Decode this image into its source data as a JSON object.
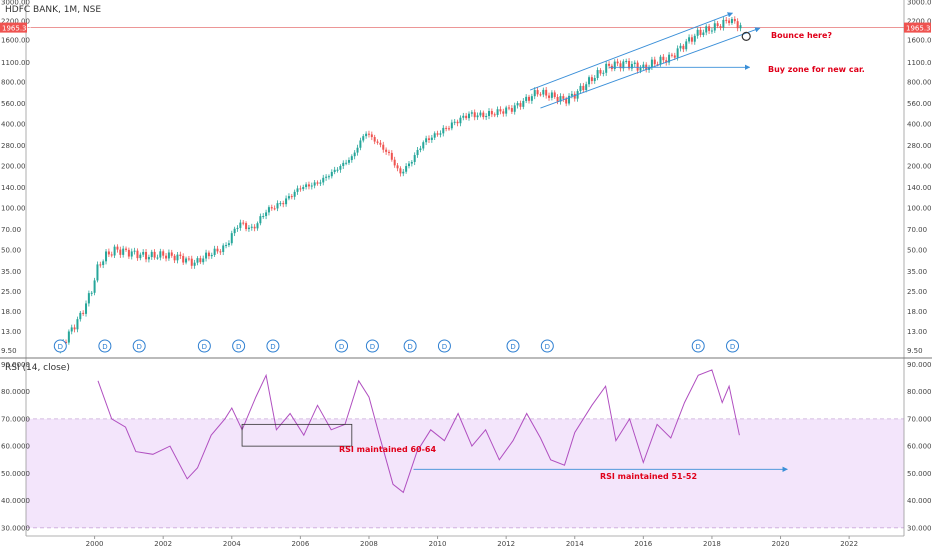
{
  "header": {
    "symbol_title": "HDFC BANK, 1M, NSE",
    "indicator_title": "RSI (14, close)"
  },
  "price_pane": {
    "y_ticks": [
      "3000.00",
      "2200.00",
      "1600.00",
      "1100.00",
      "800.00",
      "560.00",
      "400.00",
      "280.00",
      "200.00",
      "140.00",
      "100.00",
      "70.00",
      "50.00",
      "35.00",
      "25.00",
      "18.00",
      "13.00",
      "9.50"
    ],
    "last_price_label": "1965.30",
    "colors": {
      "up": "#26a69a",
      "down": "#ef5350",
      "last_line": "#e57373",
      "trend": "#3a8fd8",
      "annot": "#e0001a",
      "dividend": "#2e7fd1"
    }
  },
  "rsi_pane": {
    "y_ticks": [
      "90.0000",
      "80.0000",
      "70.0000",
      "60.0000",
      "50.0000",
      "40.0000",
      "30.0000"
    ],
    "band": [
      30,
      70
    ],
    "band_fill": "#f3e5fb",
    "line_color": "#b04fc0"
  },
  "x_axis": {
    "ticks": [
      "2000",
      "2002",
      "2004",
      "2006",
      "2008",
      "2010",
      "2012",
      "2014",
      "2016",
      "2018",
      "2020",
      "2022"
    ]
  },
  "dividend_marker_label": "D",
  "annotations": {
    "bounce": "Bounce here?",
    "buy_zone": "Buy zone for new car.",
    "rsi_box": "RSI maintained 60-64",
    "rsi_arrow": "RSI maintained 51-52"
  },
  "chart_data": [
    {
      "type": "candlestick",
      "title": "HDFC BANK, 1M, NSE",
      "scale": "log",
      "ylim": [
        8.5,
        3000
      ],
      "xlim": [
        1998.0,
        2023.6
      ],
      "close_points": [
        {
          "x": 1999.0,
          "y": 10
        },
        {
          "x": 1999.3,
          "y": 13
        },
        {
          "x": 1999.6,
          "y": 17
        },
        {
          "x": 1999.9,
          "y": 25
        },
        {
          "x": 2000.1,
          "y": 38
        },
        {
          "x": 2000.3,
          "y": 45
        },
        {
          "x": 2000.6,
          "y": 50
        },
        {
          "x": 2001.0,
          "y": 48
        },
        {
          "x": 2001.5,
          "y": 45
        },
        {
          "x": 2002.0,
          "y": 46
        },
        {
          "x": 2002.5,
          "y": 44
        },
        {
          "x": 2002.9,
          "y": 40
        },
        {
          "x": 2003.3,
          "y": 46
        },
        {
          "x": 2003.8,
          "y": 52
        },
        {
          "x": 2004.2,
          "y": 78
        },
        {
          "x": 2004.6,
          "y": 70
        },
        {
          "x": 2005.0,
          "y": 95
        },
        {
          "x": 2005.5,
          "y": 110
        },
        {
          "x": 2006.0,
          "y": 140
        },
        {
          "x": 2006.5,
          "y": 150
        },
        {
          "x": 2007.0,
          "y": 185
        },
        {
          "x": 2007.5,
          "y": 230
        },
        {
          "x": 2007.9,
          "y": 350
        },
        {
          "x": 2008.2,
          "y": 300
        },
        {
          "x": 2008.6,
          "y": 240
        },
        {
          "x": 2008.9,
          "y": 175
        },
        {
          "x": 2009.2,
          "y": 210
        },
        {
          "x": 2009.6,
          "y": 300
        },
        {
          "x": 2010.0,
          "y": 340
        },
        {
          "x": 2010.5,
          "y": 410
        },
        {
          "x": 2010.9,
          "y": 470
        },
        {
          "x": 2011.3,
          "y": 460
        },
        {
          "x": 2011.8,
          "y": 490
        },
        {
          "x": 2012.2,
          "y": 520
        },
        {
          "x": 2012.6,
          "y": 600
        },
        {
          "x": 2012.9,
          "y": 680
        },
        {
          "x": 2013.3,
          "y": 640
        },
        {
          "x": 2013.7,
          "y": 590
        },
        {
          "x": 2014.0,
          "y": 650
        },
        {
          "x": 2014.5,
          "y": 850
        },
        {
          "x": 2015.0,
          "y": 1050
        },
        {
          "x": 2015.5,
          "y": 1090
        },
        {
          "x": 2016.0,
          "y": 1000
        },
        {
          "x": 2016.3,
          "y": 1100
        },
        {
          "x": 2016.8,
          "y": 1200
        },
        {
          "x": 2017.2,
          "y": 1500
        },
        {
          "x": 2017.6,
          "y": 1800
        },
        {
          "x": 2018.0,
          "y": 1950
        },
        {
          "x": 2018.3,
          "y": 2100
        },
        {
          "x": 2018.5,
          "y": 2250
        },
        {
          "x": 2018.7,
          "y": 2100
        },
        {
          "x": 2018.9,
          "y": 1965.3
        }
      ],
      "last_price": 1965.3,
      "dividend_markers_x": [
        1999.0,
        2000.3,
        2001.3,
        2003.2,
        2004.2,
        2005.2,
        2007.2,
        2008.1,
        2009.2,
        2010.2,
        2012.2,
        2013.2,
        2017.6,
        2018.6
      ]
    },
    {
      "type": "line",
      "title": "RSI (14, close)",
      "ylim": [
        27,
        92
      ],
      "xlim": [
        1998.0,
        2023.6
      ],
      "series": [
        {
          "points": [
            {
              "x": 2000.1,
              "y": 84
            },
            {
              "x": 2000.5,
              "y": 70
            },
            {
              "x": 2000.9,
              "y": 67
            },
            {
              "x": 2001.2,
              "y": 58
            },
            {
              "x": 2001.7,
              "y": 57
            },
            {
              "x": 2002.2,
              "y": 60
            },
            {
              "x": 2002.7,
              "y": 48
            },
            {
              "x": 2003.0,
              "y": 52
            },
            {
              "x": 2003.4,
              "y": 64
            },
            {
              "x": 2003.8,
              "y": 70
            },
            {
              "x": 2004.0,
              "y": 74
            },
            {
              "x": 2004.3,
              "y": 66
            },
            {
              "x": 2004.7,
              "y": 78
            },
            {
              "x": 2005.0,
              "y": 86
            },
            {
              "x": 2005.3,
              "y": 66
            },
            {
              "x": 2005.7,
              "y": 72
            },
            {
              "x": 2006.1,
              "y": 64
            },
            {
              "x": 2006.5,
              "y": 75
            },
            {
              "x": 2006.9,
              "y": 66
            },
            {
              "x": 2007.3,
              "y": 68
            },
            {
              "x": 2007.7,
              "y": 84
            },
            {
              "x": 2008.0,
              "y": 78
            },
            {
              "x": 2008.3,
              "y": 64
            },
            {
              "x": 2008.7,
              "y": 46
            },
            {
              "x": 2009.0,
              "y": 43
            },
            {
              "x": 2009.4,
              "y": 58
            },
            {
              "x": 2009.8,
              "y": 66
            },
            {
              "x": 2010.2,
              "y": 62
            },
            {
              "x": 2010.6,
              "y": 72
            },
            {
              "x": 2011.0,
              "y": 60
            },
            {
              "x": 2011.4,
              "y": 66
            },
            {
              "x": 2011.8,
              "y": 55
            },
            {
              "x": 2012.2,
              "y": 62
            },
            {
              "x": 2012.6,
              "y": 72
            },
            {
              "x": 2013.0,
              "y": 63
            },
            {
              "x": 2013.3,
              "y": 55
            },
            {
              "x": 2013.7,
              "y": 53
            },
            {
              "x": 2014.0,
              "y": 65
            },
            {
              "x": 2014.5,
              "y": 75
            },
            {
              "x": 2014.9,
              "y": 82
            },
            {
              "x": 2015.2,
              "y": 62
            },
            {
              "x": 2015.6,
              "y": 70
            },
            {
              "x": 2016.0,
              "y": 54
            },
            {
              "x": 2016.4,
              "y": 68
            },
            {
              "x": 2016.8,
              "y": 63
            },
            {
              "x": 2017.2,
              "y": 76
            },
            {
              "x": 2017.6,
              "y": 86
            },
            {
              "x": 2018.0,
              "y": 88
            },
            {
              "x": 2018.3,
              "y": 76
            },
            {
              "x": 2018.5,
              "y": 82
            },
            {
              "x": 2018.8,
              "y": 64
            }
          ]
        }
      ]
    }
  ]
}
